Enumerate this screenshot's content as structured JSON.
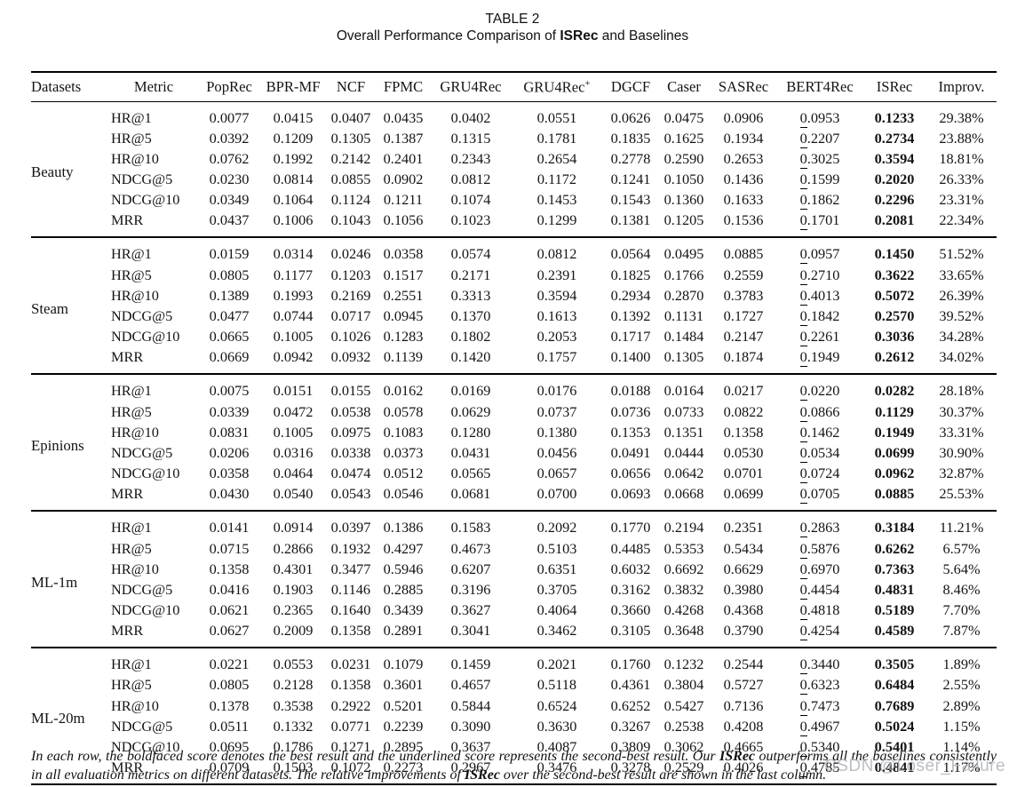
{
  "title": {
    "line1": "TABLE 2",
    "line2_parts": [
      {
        "text": "Overall Performance Comparison of ",
        "bold": false
      },
      {
        "text": "ISRec",
        "bold": true
      },
      {
        "text": " and Baselines",
        "bold": false
      }
    ]
  },
  "table": {
    "columns": [
      "Datasets",
      "Metric",
      "PopRec",
      "BPR-MF",
      "NCF",
      "FPMC",
      "GRU4Rec",
      "GRU4Rec+",
      "DGCF",
      "Caser",
      "SASRec",
      "BERT4Rec",
      "ISRec",
      "Improv."
    ],
    "second_best_col_index": 9,
    "best_col_index": 10,
    "improv_col_index": 11,
    "sections": [
      {
        "dataset": "Beauty",
        "rows": [
          {
            "metric": "HR@1",
            "values": [
              "0.0077",
              "0.0415",
              "0.0407",
              "0.0435",
              "0.0402",
              "0.0551",
              "0.0626",
              "0.0475",
              "0.0906",
              "0.0953",
              "0.1233",
              "29.38%"
            ]
          },
          {
            "metric": "HR@5",
            "values": [
              "0.0392",
              "0.1209",
              "0.1305",
              "0.1387",
              "0.1315",
              "0.1781",
              "0.1835",
              "0.1625",
              "0.1934",
              "0.2207",
              "0.2734",
              "23.88%"
            ]
          },
          {
            "metric": "HR@10",
            "values": [
              "0.0762",
              "0.1992",
              "0.2142",
              "0.2401",
              "0.2343",
              "0.2654",
              "0.2778",
              "0.2590",
              "0.2653",
              "0.3025",
              "0.3594",
              "18.81%"
            ]
          },
          {
            "metric": "NDCG@5",
            "values": [
              "0.0230",
              "0.0814",
              "0.0855",
              "0.0902",
              "0.0812",
              "0.1172",
              "0.1241",
              "0.1050",
              "0.1436",
              "0.1599",
              "0.2020",
              "26.33%"
            ]
          },
          {
            "metric": "NDCG@10",
            "values": [
              "0.0349",
              "0.1064",
              "0.1124",
              "0.1211",
              "0.1074",
              "0.1453",
              "0.1543",
              "0.1360",
              "0.1633",
              "0.1862",
              "0.2296",
              "23.31%"
            ]
          },
          {
            "metric": "MRR",
            "values": [
              "0.0437",
              "0.1006",
              "0.1043",
              "0.1056",
              "0.1023",
              "0.1299",
              "0.1381",
              "0.1205",
              "0.1536",
              "0.1701",
              "0.2081",
              "22.34%"
            ]
          }
        ]
      },
      {
        "dataset": "Steam",
        "rows": [
          {
            "metric": "HR@1",
            "values": [
              "0.0159",
              "0.0314",
              "0.0246",
              "0.0358",
              "0.0574",
              "0.0812",
              "0.0564",
              "0.0495",
              "0.0885",
              "0.0957",
              "0.1450",
              "51.52%"
            ]
          },
          {
            "metric": "HR@5",
            "values": [
              "0.0805",
              "0.1177",
              "0.1203",
              "0.1517",
              "0.2171",
              "0.2391",
              "0.1825",
              "0.1766",
              "0.2559",
              "0.2710",
              "0.3622",
              "33.65%"
            ]
          },
          {
            "metric": "HR@10",
            "values": [
              "0.1389",
              "0.1993",
              "0.2169",
              "0.2551",
              "0.3313",
              "0.3594",
              "0.2934",
              "0.2870",
              "0.3783",
              "0.4013",
              "0.5072",
              "26.39%"
            ]
          },
          {
            "metric": "NDCG@5",
            "values": [
              "0.0477",
              "0.0744",
              "0.0717",
              "0.0945",
              "0.1370",
              "0.1613",
              "0.1392",
              "0.1131",
              "0.1727",
              "0.1842",
              "0.2570",
              "39.52%"
            ]
          },
          {
            "metric": "NDCG@10",
            "values": [
              "0.0665",
              "0.1005",
              "0.1026",
              "0.1283",
              "0.1802",
              "0.2053",
              "0.1717",
              "0.1484",
              "0.2147",
              "0.2261",
              "0.3036",
              "34.28%"
            ]
          },
          {
            "metric": "MRR",
            "values": [
              "0.0669",
              "0.0942",
              "0.0932",
              "0.1139",
              "0.1420",
              "0.1757",
              "0.1400",
              "0.1305",
              "0.1874",
              "0.1949",
              "0.2612",
              "34.02%"
            ]
          }
        ]
      },
      {
        "dataset": "Epinions",
        "rows": [
          {
            "metric": "HR@1",
            "values": [
              "0.0075",
              "0.0151",
              "0.0155",
              "0.0162",
              "0.0169",
              "0.0176",
              "0.0188",
              "0.0164",
              "0.0217",
              "0.0220",
              "0.0282",
              "28.18%"
            ]
          },
          {
            "metric": "HR@5",
            "values": [
              "0.0339",
              "0.0472",
              "0.0538",
              "0.0578",
              "0.0629",
              "0.0737",
              "0.0736",
              "0.0733",
              "0.0822",
              "0.0866",
              "0.1129",
              "30.37%"
            ]
          },
          {
            "metric": "HR@10",
            "values": [
              "0.0831",
              "0.1005",
              "0.0975",
              "0.1083",
              "0.1280",
              "0.1380",
              "0.1353",
              "0.1351",
              "0.1358",
              "0.1462",
              "0.1949",
              "33.31%"
            ]
          },
          {
            "metric": "NDCG@5",
            "values": [
              "0.0206",
              "0.0316",
              "0.0338",
              "0.0373",
              "0.0431",
              "0.0456",
              "0.0491",
              "0.0444",
              "0.0530",
              "0.0534",
              "0.0699",
              "30.90%"
            ]
          },
          {
            "metric": "NDCG@10",
            "values": [
              "0.0358",
              "0.0464",
              "0.0474",
              "0.0512",
              "0.0565",
              "0.0657",
              "0.0656",
              "0.0642",
              "0.0701",
              "0.0724",
              "0.0962",
              "32.87%"
            ]
          },
          {
            "metric": "MRR",
            "values": [
              "0.0430",
              "0.0540",
              "0.0543",
              "0.0546",
              "0.0681",
              "0.0700",
              "0.0693",
              "0.0668",
              "0.0699",
              "0.0705",
              "0.0885",
              "25.53%"
            ]
          }
        ]
      },
      {
        "dataset": "ML-1m",
        "rows": [
          {
            "metric": "HR@1",
            "values": [
              "0.0141",
              "0.0914",
              "0.0397",
              "0.1386",
              "0.1583",
              "0.2092",
              "0.1770",
              "0.2194",
              "0.2351",
              "0.2863",
              "0.3184",
              "11.21%"
            ]
          },
          {
            "metric": "HR@5",
            "values": [
              "0.0715",
              "0.2866",
              "0.1932",
              "0.4297",
              "0.4673",
              "0.5103",
              "0.4485",
              "0.5353",
              "0.5434",
              "0.5876",
              "0.6262",
              "6.57%"
            ]
          },
          {
            "metric": "HR@10",
            "values": [
              "0.1358",
              "0.4301",
              "0.3477",
              "0.5946",
              "0.6207",
              "0.6351",
              "0.6032",
              "0.6692",
              "0.6629",
              "0.6970",
              "0.7363",
              "5.64%"
            ]
          },
          {
            "metric": "NDCG@5",
            "values": [
              "0.0416",
              "0.1903",
              "0.1146",
              "0.2885",
              "0.3196",
              "0.3705",
              "0.3162",
              "0.3832",
              "0.3980",
              "0.4454",
              "0.4831",
              "8.46%"
            ]
          },
          {
            "metric": "NDCG@10",
            "values": [
              "0.0621",
              "0.2365",
              "0.1640",
              "0.3439",
              "0.3627",
              "0.4064",
              "0.3660",
              "0.4268",
              "0.4368",
              "0.4818",
              "0.5189",
              "7.70%"
            ]
          },
          {
            "metric": "MRR",
            "values": [
              "0.0627",
              "0.2009",
              "0.1358",
              "0.2891",
              "0.3041",
              "0.3462",
              "0.3105",
              "0.3648",
              "0.3790",
              "0.4254",
              "0.4589",
              "7.87%"
            ]
          }
        ]
      },
      {
        "dataset": "ML-20m",
        "rows": [
          {
            "metric": "HR@1",
            "values": [
              "0.0221",
              "0.0553",
              "0.0231",
              "0.1079",
              "0.1459",
              "0.2021",
              "0.1760",
              "0.1232",
              "0.2544",
              "0.3440",
              "0.3505",
              "1.89%"
            ]
          },
          {
            "metric": "HR@5",
            "values": [
              "0.0805",
              "0.2128",
              "0.1358",
              "0.3601",
              "0.4657",
              "0.5118",
              "0.4361",
              "0.3804",
              "0.5727",
              "0.6323",
              "0.6484",
              "2.55%"
            ]
          },
          {
            "metric": "HR@10",
            "values": [
              "0.1378",
              "0.3538",
              "0.2922",
              "0.5201",
              "0.5844",
              "0.6524",
              "0.6252",
              "0.5427",
              "0.7136",
              "0.7473",
              "0.7689",
              "2.89%"
            ]
          },
          {
            "metric": "NDCG@5",
            "values": [
              "0.0511",
              "0.1332",
              "0.0771",
              "0.2239",
              "0.3090",
              "0.3630",
              "0.3267",
              "0.2538",
              "0.4208",
              "0.4967",
              "0.5024",
              "1.15%"
            ]
          },
          {
            "metric": "NDCG@10",
            "values": [
              "0.0695",
              "0.1786",
              "0.1271",
              "0.2895",
              "0.3637",
              "0.4087",
              "0.3809",
              "0.3062",
              "0.4665",
              "0.5340",
              "0.5401",
              "1.14%"
            ]
          },
          {
            "metric": "MRR",
            "values": [
              "0.0709",
              "0.1503",
              "0.1072",
              "0.2273",
              "0.2967",
              "0.3476",
              "0.3278",
              "0.2529",
              "0.4026",
              "0.4785",
              "0.4841",
              "1.17%"
            ]
          }
        ]
      }
    ]
  },
  "footnote_parts": [
    {
      "text": "In each row, the boldfaced score denotes the best result and the underlined score represents the second-best result. Our ",
      "bold": false
    },
    {
      "text": "ISRec",
      "bold": true
    },
    {
      "text": " outperforms all the baselines consistently in all evaluation metrics on different datasets. The relative improvements of ",
      "bold": false
    },
    {
      "text": "ISRec",
      "bold": true
    },
    {
      "text": " over the second-best result are shown in the last column.",
      "bold": false
    }
  ],
  "watermark": "CSDN @Loser_Failure"
}
